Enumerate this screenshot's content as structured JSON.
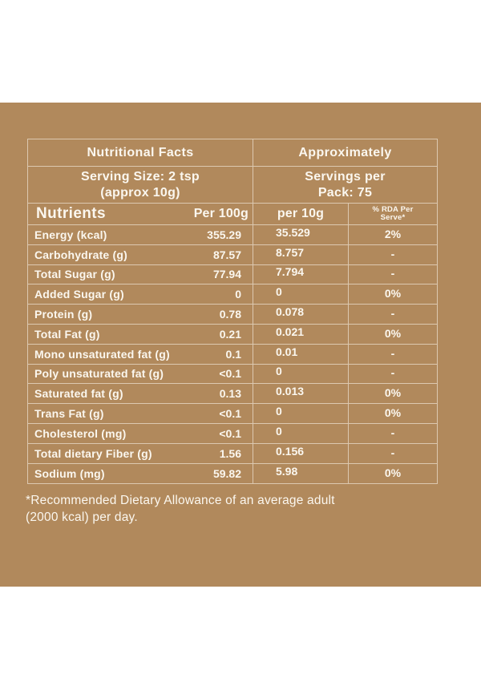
{
  "colors": {
    "panel_bg": "#b1895c",
    "text": "#fbf7ef",
    "grid_line": "rgba(255,252,245,0.55)",
    "page_bg": "#ffffff"
  },
  "header": {
    "facts_title": "Nutritional Facts",
    "approx_title": "Approximately",
    "serving_size_line1": "Serving Size: 2 tsp",
    "serving_size_line2": "(approx 10g)",
    "servings_line1": "Servings per",
    "servings_line2": "Pack: 75"
  },
  "columns": {
    "nutrients": "Nutrients",
    "per_100g": "Per 100g",
    "per_10g": "per 10g",
    "rda_line1": "% RDA Per",
    "rda_line2": "Serve*"
  },
  "rows": [
    {
      "name": "Energy (kcal)",
      "per_100g": "355.29",
      "per_10g": "35.529",
      "rda": "2%"
    },
    {
      "name": "Carbohydrate (g)",
      "per_100g": "87.57",
      "per_10g": "8.757",
      "rda": "-"
    },
    {
      "name": "Total Sugar (g)",
      "per_100g": "77.94",
      "per_10g": "7.794",
      "rda": "-"
    },
    {
      "name": "Added Sugar (g)",
      "per_100g": "0",
      "per_10g": "0",
      "rda": "0%"
    },
    {
      "name": "Protein (g)",
      "per_100g": "0.78",
      "per_10g": "0.078",
      "rda": "-"
    },
    {
      "name": "Total Fat (g)",
      "per_100g": "0.21",
      "per_10g": "0.021",
      "rda": "0%"
    },
    {
      "name": "Mono unsaturated fat (g)",
      "per_100g": "0.1",
      "per_10g": "0.01",
      "rda": "-"
    },
    {
      "name": "Poly unsaturated fat (g)",
      "per_100g": "<0.1",
      "per_10g": "0",
      "rda": "-"
    },
    {
      "name": "Saturated fat (g)",
      "per_100g": "0.13",
      "per_10g": "0.013",
      "rda": "0%"
    },
    {
      "name": "Trans Fat (g)",
      "per_100g": "<0.1",
      "per_10g": "0",
      "rda": "0%"
    },
    {
      "name": "Cholesterol (mg)",
      "per_100g": "<0.1",
      "per_10g": "0",
      "rda": "-"
    },
    {
      "name": "Total dietary Fiber (g)",
      "per_100g": "1.56",
      "per_10g": "0.156",
      "rda": "-"
    },
    {
      "name": "Sodium (mg)",
      "per_100g": "59.82",
      "per_10g": "5.98",
      "rda": "0%"
    }
  ],
  "footnote": {
    "line1": "*Recommended Dietary Allowance of an average adult",
    "line2": "(2000 kcal) per day."
  }
}
